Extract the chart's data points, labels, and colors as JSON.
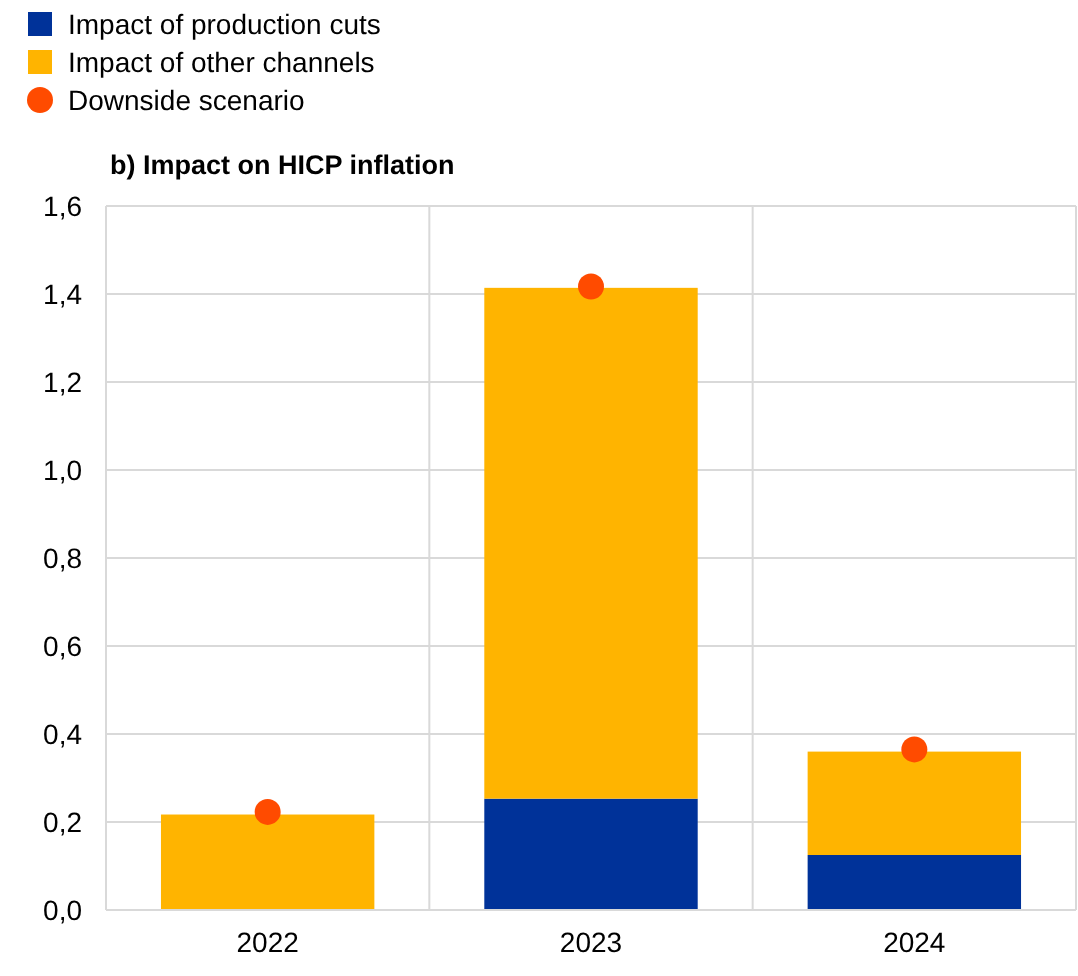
{
  "chart_data": {
    "type": "bar",
    "title": "b) Impact on HICP inflation",
    "categories": [
      "2022",
      "2023",
      "2024"
    ],
    "stacked": true,
    "series": [
      {
        "name": "Impact of production cuts",
        "color": "#003299",
        "values": [
          null,
          0.253,
          0.125
        ]
      },
      {
        "name": "Impact of other channels",
        "color": "#ffb400",
        "values": [
          0.217,
          1.161,
          0.235
        ]
      },
      {
        "name": "Downside scenario",
        "type": "scatter",
        "color": "#ff4b00",
        "values": [
          0.223,
          1.417,
          0.365
        ]
      }
    ],
    "ylim": [
      0,
      1.6
    ],
    "yticks": [
      {
        "value": 0,
        "label": "0,0"
      },
      {
        "value": 0.2,
        "label": "0,2"
      },
      {
        "value": 0.4,
        "label": "0,4"
      },
      {
        "value": 0.6,
        "label": "0,6"
      },
      {
        "value": 0.8,
        "label": "0,8"
      },
      {
        "value": 1,
        "label": "1,0"
      },
      {
        "value": 1.2,
        "label": "1,2"
      },
      {
        "value": 1.4,
        "label": "1,4"
      },
      {
        "value": 1.6,
        "label": "1,6"
      }
    ],
    "grid": true,
    "legend": "top left",
    "marker": "circle"
  }
}
